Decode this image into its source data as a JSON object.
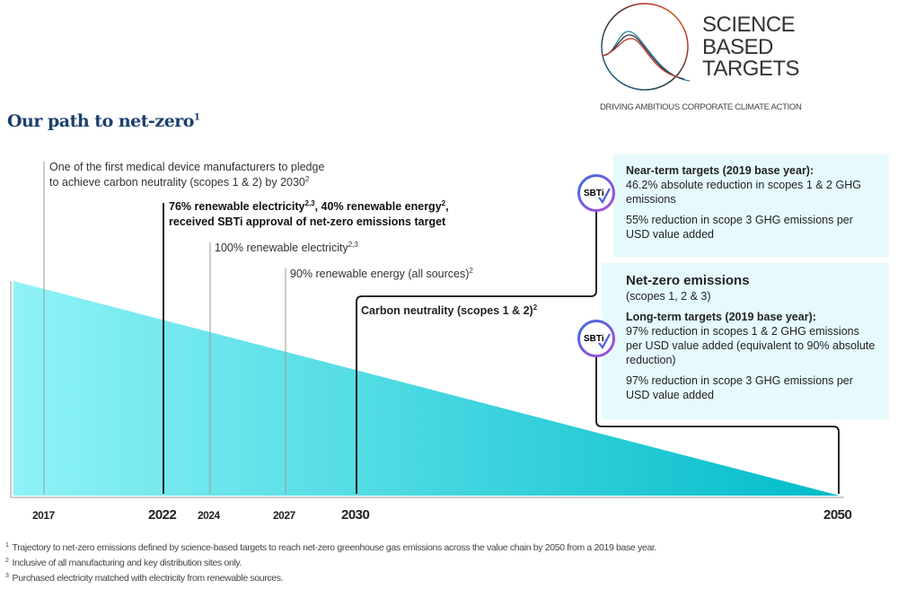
{
  "logo": {
    "lines": [
      "SCIENCE",
      "BASED",
      "TARGETS"
    ],
    "tagline": "DRIVING AMBITIOUS CORPORATE CLIMATE ACTION"
  },
  "title": {
    "text": "Our path to net-zero",
    "sup": "1"
  },
  "milestones": [
    {
      "year": "2017",
      "line1": "One of the first medical device manufacturers to pledge",
      "line2": "to achieve carbon neutrality (scopes 1 & 2) by 2030",
      "sup2": "2"
    },
    {
      "year": "2022",
      "line1a": "76% renewable electricity",
      "sup1a": "2,3",
      "line1b": ", 40% renewable energy",
      "sup1b": "2",
      "line1c": ",",
      "line2": "received SBTi approval of net-zero emissions target"
    },
    {
      "year": "2024",
      "text": "100% renewable electricity",
      "sup": "2,3"
    },
    {
      "year": "2027",
      "text": "90% renewable energy (all sources)",
      "sup": "2"
    },
    {
      "year": "2030",
      "text": "Carbon neutrality (scopes 1 & 2)",
      "sup": "2"
    },
    {
      "year": "2050"
    }
  ],
  "near_term": {
    "badge": "SBTi",
    "heading": "Near-term targets (2019 base year):",
    "p1": "46.2% absolute reduction in scopes 1 & 2 GHG emissions",
    "p2": "55% reduction in scope 3 GHG emissions per USD value added"
  },
  "net_zero": {
    "badge": "SBTi",
    "heading": "Net-zero emissions",
    "sub": "(scopes 1, 2 & 3)",
    "lt_heading": "Long-term targets (2019 base year):",
    "p1": "97% reduction in scopes 1 & 2 GHG emissions per USD value added (equivalent to 90% absolute reduction)",
    "p2": "97% reduction in scope 3 GHG emissions per USD value added"
  },
  "footnotes": [
    {
      "n": "1",
      "text": "Trajectory to net-zero emissions defined by science-based targets to reach net-zero greenhouse gas emissions across the value chain by 2050 from a 2019 base year."
    },
    {
      "n": "2",
      "text": "Inclusive of all manufacturing and key distribution sites only."
    },
    {
      "n": "3",
      "text": "Purchased electricity matched with electricity from renewable sources."
    }
  ],
  "colors": {
    "title": "#1c3f6e",
    "gradient_start": "#8ff3f8",
    "gradient_end": "#00bcc9",
    "box_bg": "#e6fafd",
    "badge_ring_start": "#3b6fe0",
    "badge_ring_end": "#b04ad8"
  },
  "icons": {
    "badge": "sbti-check-badge-icon",
    "logo": "science-based-targets-logo"
  }
}
